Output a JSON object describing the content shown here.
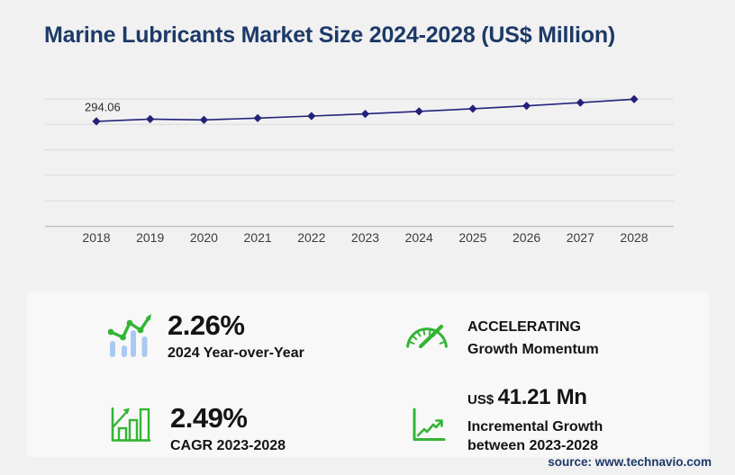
{
  "header": {
    "title": "Marine Lubricants Market Size 2024-2028 (US$ Million)"
  },
  "chart_data": {
    "type": "line",
    "title": "Marine Lubricants Market Size 2024-2028 (US$ Million)",
    "x": [
      2018,
      2019,
      2020,
      2021,
      2022,
      2023,
      2024,
      2025,
      2026,
      2027,
      2028
    ],
    "series": [
      {
        "name": "Market size (US$ Million)",
        "values": [
          294.06,
          300.5,
          298.2,
          303.1,
          308.9,
          314.9,
          322.0,
          329.4,
          337.4,
          346.4,
          356.1
        ]
      }
    ],
    "data_labels": {
      "2018": "294.06"
    },
    "marker": "diamond",
    "grid": "horizontal",
    "legend": "none",
    "ylim": [
      0,
      390
    ],
    "line_color": "#23227a"
  },
  "stats": {
    "yoy": {
      "value": "2.26%",
      "label": "2024 Year-over-Year"
    },
    "cagr": {
      "value": "2.49%",
      "label": "CAGR 2023-2028"
    },
    "momentum": {
      "line1": "ACCELERATING",
      "line2": "Growth Momentum"
    },
    "incremental": {
      "currency": "US$",
      "value": "41.21 Mn",
      "line1": "Incremental Growth",
      "line2": "between 2023-2028"
    }
  },
  "footer": {
    "source": "source: www.technavio.com"
  },
  "colors": {
    "accent_green": "#33b533",
    "line": "#23227a",
    "navy": "#1d3a68",
    "light_blue": "#a9c8f2",
    "background": "#f1f1f2",
    "panel": "#f8f8f9",
    "gridline": "#d9dadb"
  }
}
